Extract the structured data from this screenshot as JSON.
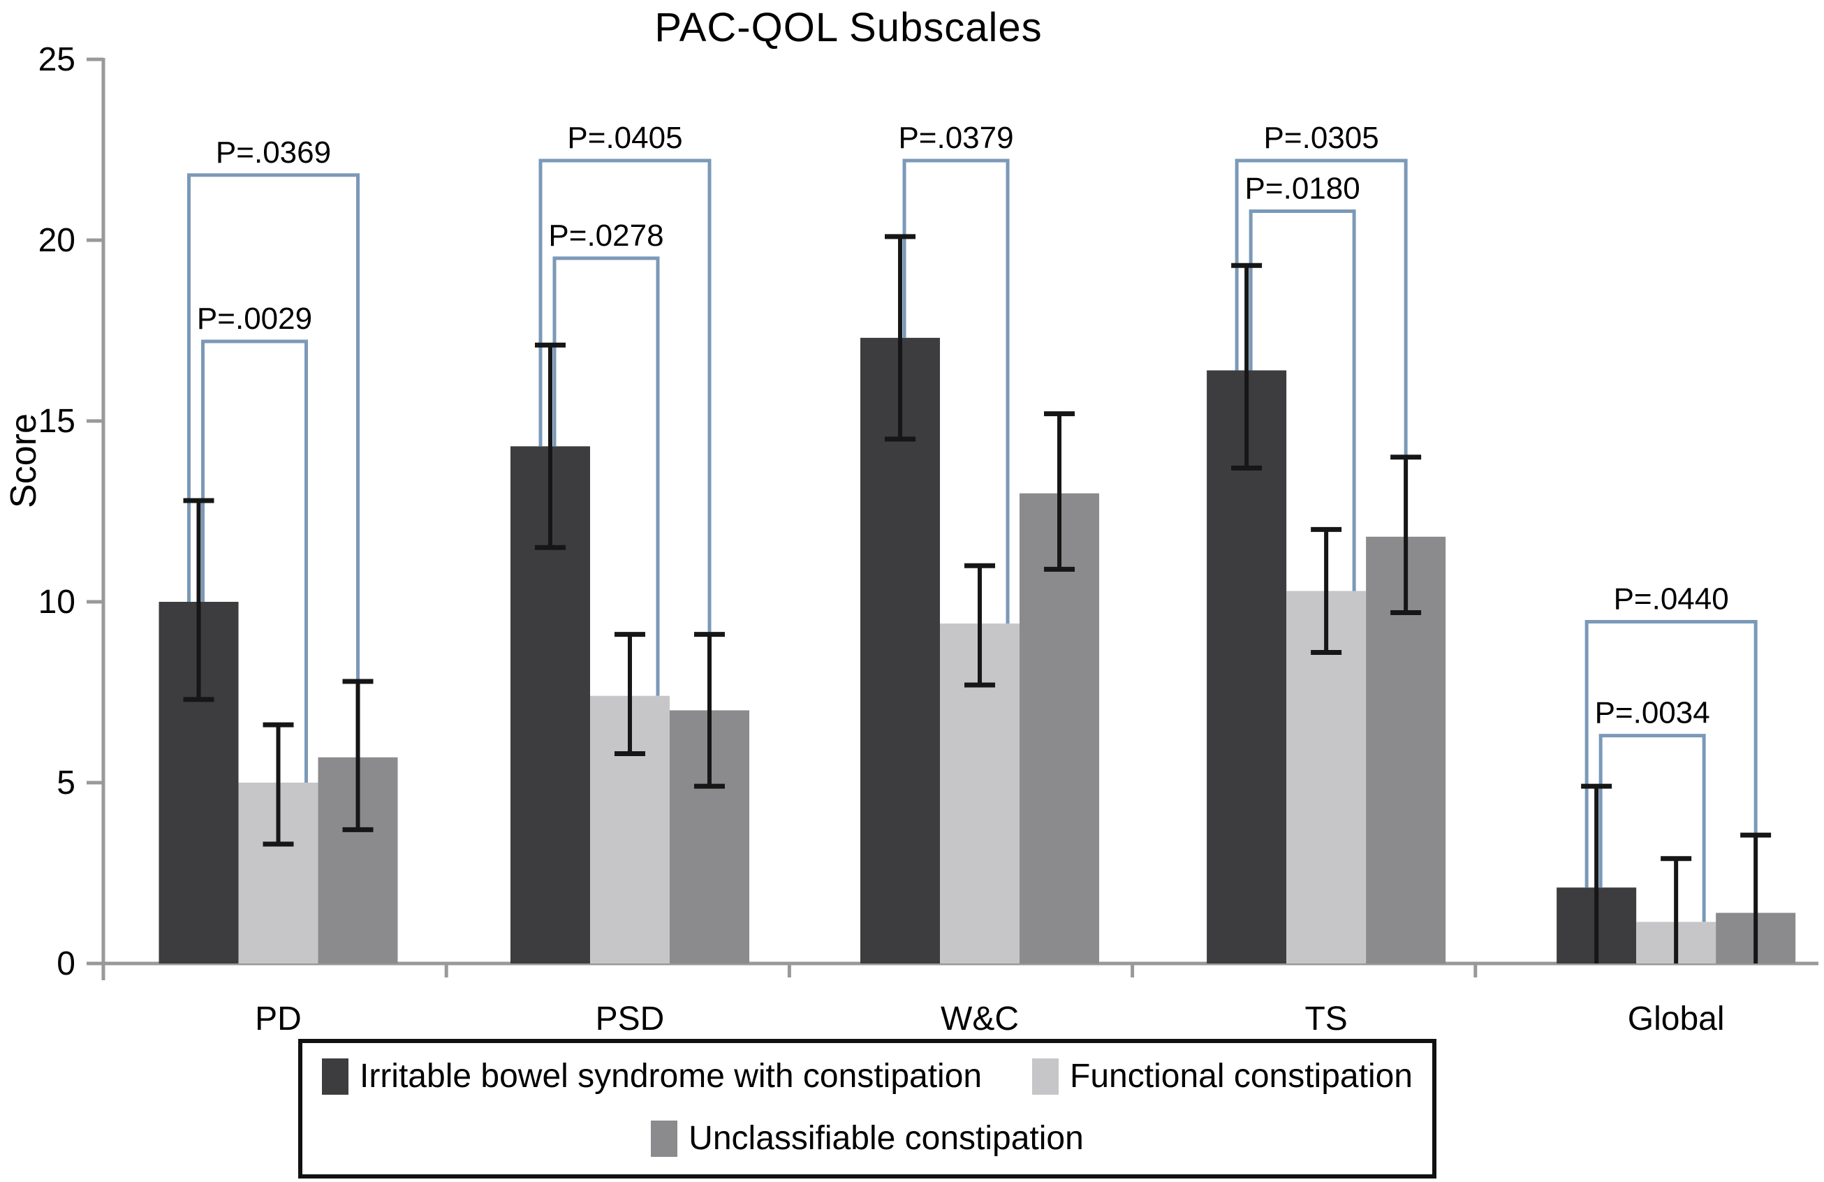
{
  "chart_data": {
    "type": "bar",
    "title": "PAC-QOL Subscales",
    "xlabel": "",
    "ylabel": "Score",
    "ylim": [
      0,
      25
    ],
    "yticks": [
      0,
      5,
      10,
      15,
      20,
      25
    ],
    "grid": false,
    "legend_position": "bottom-boxed",
    "categories": [
      "PD",
      "PSD",
      "W&C",
      "TS",
      "Global"
    ],
    "series": [
      {
        "name": "Irritable bowel syndrome with constipation",
        "color": "#3d3d3f",
        "values": [
          10.0,
          14.3,
          17.3,
          16.4,
          2.1
        ],
        "err_low": [
          7.3,
          11.5,
          14.5,
          13.7,
          0
        ],
        "err_high": [
          12.8,
          17.1,
          20.1,
          19.3,
          4.9
        ]
      },
      {
        "name": "Functional constipation",
        "color": "#c6c6c8",
        "values": [
          5.0,
          7.4,
          9.4,
          10.3,
          1.15
        ],
        "err_low": [
          3.3,
          5.8,
          7.7,
          8.6,
          0
        ],
        "err_high": [
          6.6,
          9.1,
          11.0,
          12.0,
          2.9
        ]
      },
      {
        "name": "Unclassifiable constipation",
        "color": "#8b8b8d",
        "values": [
          5.7,
          7.0,
          13.0,
          11.8,
          1.4
        ],
        "err_low": [
          3.7,
          4.9,
          10.9,
          9.7,
          0
        ],
        "err_high": [
          7.8,
          9.1,
          15.2,
          14.0,
          3.55
        ]
      }
    ],
    "significance_brackets": [
      {
        "category_index": 0,
        "from_series": 0,
        "to_series": 2,
        "height": 21.8,
        "label": "P=.0369"
      },
      {
        "category_index": 0,
        "from_series": 0,
        "to_series": 1,
        "height": 17.2,
        "label": "P=.0029"
      },
      {
        "category_index": 1,
        "from_series": 0,
        "to_series": 2,
        "height": 22.2,
        "label": "P=.0405"
      },
      {
        "category_index": 1,
        "from_series": 0,
        "to_series": 1,
        "height": 19.5,
        "label": "P=.0278"
      },
      {
        "category_index": 2,
        "from_series": 0,
        "to_series": 1,
        "height": 22.2,
        "label": "P=.0379"
      },
      {
        "category_index": 3,
        "from_series": 0,
        "to_series": 2,
        "height": 22.2,
        "label": "P=.0305"
      },
      {
        "category_index": 3,
        "from_series": 0,
        "to_series": 1,
        "height": 20.8,
        "label": "P=.0180"
      },
      {
        "category_index": 4,
        "from_series": 0,
        "to_series": 2,
        "height": 9.45,
        "label": "P=.0440"
      },
      {
        "category_index": 4,
        "from_series": 0,
        "to_series": 1,
        "height": 6.3,
        "label": "P=.0034"
      }
    ],
    "colors": {
      "bracket": "#7b99b8",
      "error_bar": "#161616",
      "axis": "#999999",
      "text": "#000000"
    }
  }
}
